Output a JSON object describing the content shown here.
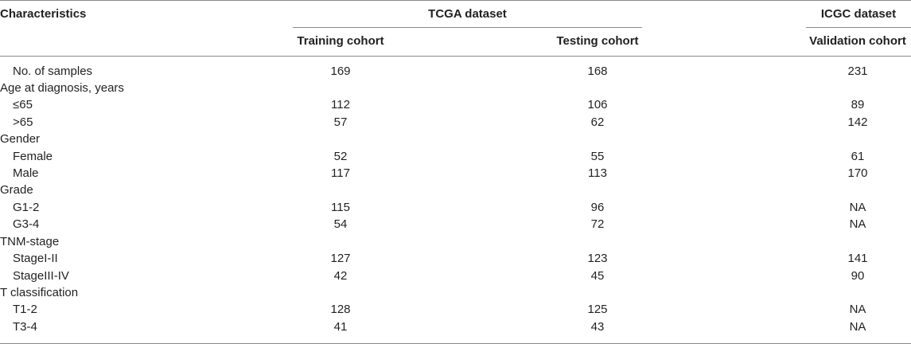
{
  "table": {
    "header": {
      "characteristics": "Characteristics",
      "group_tcga": "TCGA dataset",
      "group_icgc": "ICGC dataset",
      "training": "Training cohort",
      "testing": "Testing cohort",
      "validation": "Validation cohort"
    },
    "rows": [
      {
        "label": "No. of samples",
        "indent": true,
        "values": [
          "169",
          "168",
          "231"
        ]
      },
      {
        "label": "Age at diagnosis, years",
        "indent": false,
        "values": [
          "",
          "",
          ""
        ]
      },
      {
        "label": "≤65",
        "indent": true,
        "values": [
          "112",
          "106",
          "89"
        ]
      },
      {
        "label": ">65",
        "indent": true,
        "values": [
          "57",
          "62",
          "142"
        ]
      },
      {
        "label": "Gender",
        "indent": false,
        "values": [
          "",
          "",
          ""
        ]
      },
      {
        "label": "Female",
        "indent": true,
        "values": [
          "52",
          "55",
          "61"
        ]
      },
      {
        "label": "Male",
        "indent": true,
        "values": [
          "117",
          "113",
          "170"
        ]
      },
      {
        "label": "Grade",
        "indent": false,
        "values": [
          "",
          "",
          ""
        ]
      },
      {
        "label": "G1-2",
        "indent": true,
        "values": [
          "115",
          "96",
          "NA"
        ]
      },
      {
        "label": "G3-4",
        "indent": true,
        "values": [
          "54",
          "72",
          "NA"
        ]
      },
      {
        "label": "TNM-stage",
        "indent": false,
        "values": [
          "",
          "",
          ""
        ]
      },
      {
        "label": "StageI-II",
        "indent": true,
        "values": [
          "127",
          "123",
          "141"
        ]
      },
      {
        "label": "StageIII-IV",
        "indent": true,
        "values": [
          "42",
          "45",
          "90"
        ]
      },
      {
        "label": "T classification",
        "indent": false,
        "values": [
          "",
          "",
          ""
        ]
      },
      {
        "label": "T1-2",
        "indent": true,
        "values": [
          "128",
          "125",
          "NA"
        ]
      },
      {
        "label": "T3-4",
        "indent": true,
        "values": [
          "41",
          "43",
          "NA"
        ]
      }
    ]
  }
}
